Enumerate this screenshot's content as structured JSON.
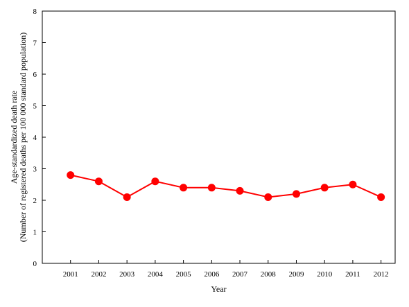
{
  "chart_data": {
    "type": "line",
    "title": "",
    "xlabel": "Year",
    "ylabel_line1": "Age-standardized death rate",
    "ylabel_line2": "(Number of registered deaths per 100 000 standard population)",
    "categories": [
      "2001",
      "2002",
      "2003",
      "2004",
      "2005",
      "2006",
      "2007",
      "2008",
      "2009",
      "2010",
      "2011",
      "2012"
    ],
    "series": [
      {
        "values": [
          2.8,
          2.6,
          2.1,
          2.6,
          2.4,
          2.4,
          2.3,
          2.1,
          2.2,
          2.4,
          2.5,
          2.1
        ],
        "color": "#ff0000"
      }
    ],
    "ylim": [
      0,
      8
    ],
    "yticks": [
      "0",
      "1",
      "2",
      "3",
      "4",
      "5",
      "6",
      "7",
      "8"
    ],
    "grid": false,
    "legend": "none"
  }
}
